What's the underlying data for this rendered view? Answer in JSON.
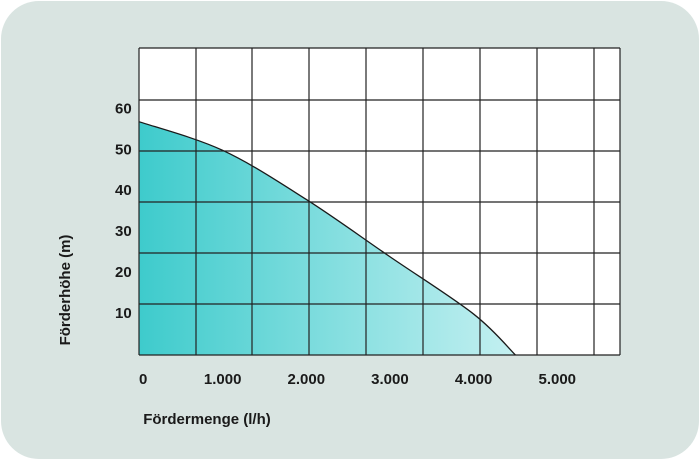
{
  "chart_data": {
    "type": "area",
    "xlabel": "Fördermenge (l/h)",
    "ylabel": "Förderhöhe (m)",
    "x": [
      0,
      1000,
      2000,
      3000,
      4000,
      4500
    ],
    "series": [
      {
        "color": "#3ecbcc",
        "values": [
          57,
          50,
          38,
          24,
          10,
          0
        ]
      }
    ],
    "xlim": [
      0,
      5750
    ],
    "xticks": [
      0,
      {
        "value": 1000,
        "label": "1.000"
      },
      {
        "value": 2000,
        "label": "2.000"
      },
      {
        "value": 3000,
        "label": "3.000"
      },
      {
        "value": 4000,
        "label": "4.000"
      },
      {
        "value": 5000,
        "label": "5.000"
      }
    ],
    "ylim": [
      0,
      75
    ],
    "yticks": [
      10,
      20,
      30,
      40,
      50,
      60
    ]
  }
}
